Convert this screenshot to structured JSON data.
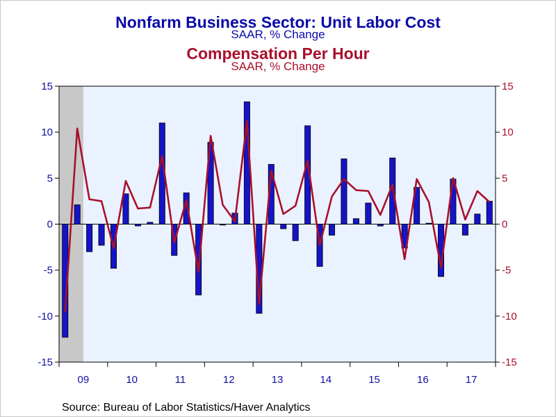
{
  "title": "Nonfarm Business Sector: Unit Labor Cost",
  "subtitle": "SAAR, % Change",
  "title2": "Compensation Per Hour",
  "subtitle2": "SAAR, % Change",
  "source": "Source:  Bureau of Labor Statistics/Haver Analytics",
  "colors": {
    "bars": "#1414c8",
    "line": "#a8102c",
    "plot_bg": "#eaf2ff",
    "recession": "#c8c8c8",
    "left_axis": "#1010a0",
    "right_axis": "#a8102c"
  },
  "chart_data": {
    "type": "bar",
    "x_axis_labels": [
      "09",
      "10",
      "11",
      "12",
      "13",
      "14",
      "15",
      "16",
      "17"
    ],
    "ylim": [
      -15,
      15
    ],
    "y_ticks": [
      15,
      10,
      5,
      0,
      -5,
      -10,
      -15
    ],
    "y2lim": [
      -15,
      15
    ],
    "y2_ticks": [
      15,
      10,
      5,
      0,
      -5,
      -10,
      -15
    ],
    "grid": false,
    "shaded_region": {
      "label": "recession",
      "from_quarter": "2009Q1",
      "to_quarter": "2009Q2"
    },
    "quarters": [
      "2009Q1",
      "2009Q2",
      "2009Q3",
      "2009Q4",
      "2010Q1",
      "2010Q2",
      "2010Q3",
      "2010Q4",
      "2011Q1",
      "2011Q2",
      "2011Q3",
      "2011Q4",
      "2012Q1",
      "2012Q2",
      "2012Q3",
      "2012Q4",
      "2013Q1",
      "2013Q2",
      "2013Q3",
      "2013Q4",
      "2014Q1",
      "2014Q2",
      "2014Q3",
      "2014Q4",
      "2015Q1",
      "2015Q2",
      "2015Q3",
      "2015Q4",
      "2016Q1",
      "2016Q2",
      "2016Q3",
      "2016Q4",
      "2017Q1",
      "2017Q2",
      "2017Q3",
      "2017Q4"
    ],
    "series": [
      {
        "name": "Unit Labor Cost",
        "type": "bar",
        "axis": "left",
        "values": [
          -12.3,
          2.1,
          -3.0,
          -2.3,
          -4.8,
          3.3,
          -0.2,
          0.2,
          11.0,
          -3.4,
          3.4,
          -7.7,
          8.9,
          -0.1,
          1.2,
          13.3,
          -9.7,
          6.5,
          -0.5,
          -1.8,
          10.7,
          -4.6,
          -1.2,
          7.1,
          0.6,
          2.3,
          -0.2,
          7.2,
          -2.6,
          4.0,
          0.1,
          -5.7,
          4.9,
          -1.2,
          1.1,
          2.5
        ]
      },
      {
        "name": "Compensation Per Hour",
        "type": "line",
        "axis": "right",
        "values": [
          -9.6,
          10.4,
          2.7,
          2.5,
          -2.6,
          4.7,
          1.7,
          1.8,
          7.4,
          -2.0,
          2.6,
          -5.2,
          9.6,
          2.1,
          0.3,
          11.2,
          -8.7,
          5.8,
          1.1,
          2.0,
          6.9,
          -2.3,
          3.0,
          4.9,
          3.7,
          3.6,
          1.0,
          4.3,
          -3.8,
          4.9,
          2.4,
          -4.7,
          5.0,
          0.5,
          3.6,
          2.4
        ]
      }
    ]
  }
}
